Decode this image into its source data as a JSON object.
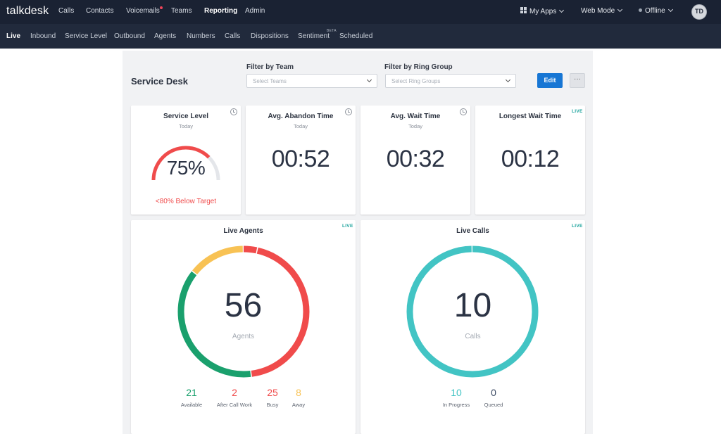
{
  "topnav": {
    "logo": "talkdesk",
    "links": [
      "Calls",
      "Contacts",
      "Voicemails",
      "Teams",
      "Reporting",
      "Admin"
    ],
    "my_apps": "My Apps",
    "web_mode": "Web Mode",
    "status": "Offline",
    "avatar": "TD"
  },
  "subnav": {
    "links": [
      "Live",
      "Inbound",
      "Service Level",
      "Outbound",
      "Agents",
      "Numbers",
      "Calls",
      "Dispositions",
      "Sentiment",
      "Scheduled"
    ],
    "beta": "BETA"
  },
  "header": {
    "title": "Service Desk",
    "team_filter_label": "Filter by Team",
    "team_placeholder": "Select Teams",
    "ring_filter_label": "Filter by Ring Group",
    "ring_placeholder": "Select Ring Groups",
    "edit_label": "Edit",
    "more_label": "···"
  },
  "cards": {
    "service_level": {
      "title": "Service Level",
      "sub": "Today",
      "value": "75%",
      "fraction": 0.75,
      "note": "<80% Below Target"
    },
    "abandon": {
      "title": "Avg. Abandon Time",
      "sub": "Today",
      "value": "00:52"
    },
    "wait": {
      "title": "Avg. Wait Time",
      "sub": "Today",
      "value": "00:32"
    },
    "longest": {
      "title": "Longest Wait Time",
      "live": "LIVE",
      "value": "00:12"
    }
  },
  "live_agents": {
    "title": "Live Agents",
    "live": "LIVE",
    "total": "56",
    "unit": "Agents",
    "stats": [
      {
        "value": "21",
        "label": "Available",
        "count": 21,
        "color": "#1aa06d"
      },
      {
        "value": "2",
        "label": "After Call Work",
        "count": 2,
        "color": "#f04b4b"
      },
      {
        "value": "25",
        "label": "Busy",
        "count": 25,
        "color": "#f04b4b"
      },
      {
        "value": "8",
        "label": "Away",
        "count": 8,
        "color": "#f8c254"
      }
    ]
  },
  "live_calls": {
    "title": "Live Calls",
    "live": "LIVE",
    "total": "10",
    "unit": "Calls",
    "stats": [
      {
        "value": "10",
        "label": "In Progress",
        "count": 10,
        "color": "#42c4c4"
      },
      {
        "value": "0",
        "label": "Queued",
        "count": 0,
        "color": "#3b4a63"
      }
    ]
  },
  "colors": {
    "accent": "#1776d4",
    "live": "#1ba39c",
    "red": "#f04b4b",
    "green": "#1aa06d",
    "yellow": "#f8c254",
    "teal": "#42c4c4"
  }
}
